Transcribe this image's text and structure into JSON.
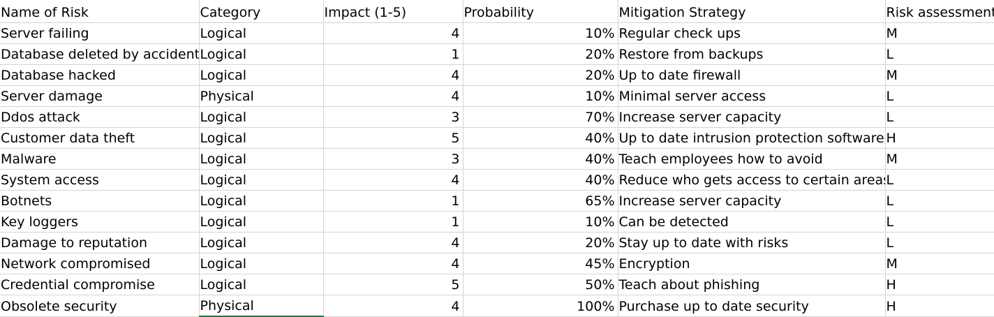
{
  "sheet": {
    "headers": [
      "Name of Risk",
      "Category",
      "Impact (1-5)",
      "Probability",
      "Mitigation Strategy",
      "Risk assessment"
    ],
    "rows": [
      [
        "Server failing",
        "Logical",
        "4",
        "10%",
        "Regular check ups",
        "M"
      ],
      [
        "Database deleted by accident",
        "Logical",
        "1",
        "20%",
        "Restore from backups",
        "L"
      ],
      [
        "Database hacked",
        "Logical",
        "4",
        "20%",
        "Up to date firewall",
        "M"
      ],
      [
        "Server damage",
        "Physical",
        "4",
        "10%",
        "Minimal server access",
        "L"
      ],
      [
        "Ddos attack",
        "Logical",
        "3",
        "70%",
        "Increase server capacity",
        "L"
      ],
      [
        "Customer data theft",
        "Logical",
        "5",
        "40%",
        "Up to date intrusion protection software",
        "H"
      ],
      [
        "Malware",
        "Logical",
        "3",
        "40%",
        "Teach employees how to avoid",
        "M"
      ],
      [
        "System access",
        "Logical",
        "4",
        "40%",
        "Reduce who gets access to certain areas",
        "L"
      ],
      [
        "Botnets",
        "Logical",
        "1",
        "65%",
        "Increase server capacity",
        "L"
      ],
      [
        "Key loggers",
        "Logical",
        "1",
        "10%",
        "Can be detected",
        "L"
      ],
      [
        "Damage to reputation",
        "Logical",
        "4",
        "20%",
        "Stay up to date with risks",
        "L"
      ],
      [
        "Network compromised",
        "Logical",
        "4",
        "45%",
        "Encryption",
        "M"
      ],
      [
        "Credential compromise",
        "Logical",
        "5",
        "50%",
        "Teach about phishing",
        "H"
      ],
      [
        "Obsolete security",
        "Physical",
        "4",
        "100%",
        "Purchase up to date security",
        "H"
      ]
    ],
    "selected_cell": {
      "row": 13,
      "col": 1
    },
    "colors": {
      "gridline": "#d4d4d4",
      "selection": "#217346",
      "text": "#000000"
    }
  }
}
